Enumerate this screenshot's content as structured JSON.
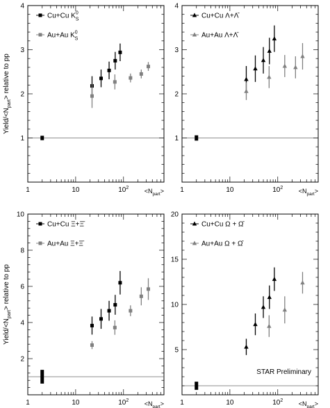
{
  "figure": {
    "ylabel_html": "Yield/&lt;N<tspan font-size=\"7\" baseline-shift=\"sub\">part</tspan>&gt; relative to pp",
    "xlabel_parts": [
      "<N",
      "part",
      ">"
    ],
    "annotation": "STAR Preliminary"
  },
  "chart_data": [
    {
      "type": "scatter",
      "panel": "top-left",
      "xlog": true,
      "xlim": [
        1,
        700
      ],
      "ylim": [
        0,
        4
      ],
      "yticks": [
        1,
        2,
        3,
        4
      ],
      "xticks": [
        1,
        10,
        100
      ],
      "xtick_labels": [
        "1",
        "10",
        "10²"
      ],
      "legend": [
        {
          "series": 0,
          "text": "Cu+Cu K",
          "sup": "0",
          "sub": "S"
        },
        {
          "series": 1,
          "text": "Au+Au K",
          "sup": "0",
          "sub": "S"
        }
      ],
      "series": [
        {
          "name": "Cu+Cu K0S",
          "color": "#000000",
          "marker": "square",
          "x": [
            22,
            34,
            50,
            67,
            85
          ],
          "y": [
            2.18,
            2.35,
            2.53,
            2.75,
            2.94
          ],
          "err": [
            0.22,
            0.2,
            0.2,
            0.2,
            0.2
          ]
        },
        {
          "name": "Au+Au K0S",
          "color": "#808080",
          "marker": "square",
          "x": [
            22,
            66,
            140,
            235,
            330
          ],
          "y": [
            1.95,
            2.27,
            2.36,
            2.45,
            2.62
          ],
          "err": [
            0.27,
            0.17,
            0.1,
            0.1,
            0.1
          ]
        }
      ],
      "ref_line": 1.0,
      "syst_box": {
        "x": 2,
        "ylo": 0.95,
        "yhi": 1.05
      }
    },
    {
      "type": "scatter",
      "panel": "top-right",
      "xlog": true,
      "xlim": [
        1,
        700
      ],
      "ylim": [
        0,
        4
      ],
      "yticks": [
        1,
        2,
        3,
        4
      ],
      "xticks": [
        1,
        10,
        100
      ],
      "xtick_labels": [
        "1",
        "10",
        "10²"
      ],
      "legend": [
        {
          "series": 0,
          "text": "Cu+Cu Λ+Λ̄"
        },
        {
          "series": 1,
          "text": "Au+Au Λ+Λ̄"
        }
      ],
      "series": [
        {
          "name": "Cu+Cu Λ+Λbar",
          "color": "#000000",
          "marker": "triangle",
          "x": [
            22,
            34,
            50,
            67,
            85
          ],
          "y": [
            2.33,
            2.57,
            2.76,
            2.97,
            3.25
          ],
          "err": [
            0.3,
            0.3,
            0.3,
            0.3,
            0.3
          ]
        },
        {
          "name": "Au+Au Λ+Λbar",
          "color": "#808080",
          "marker": "triangle",
          "x": [
            22,
            66,
            140,
            235,
            330
          ],
          "y": [
            2.06,
            2.38,
            2.63,
            2.6,
            2.85
          ],
          "err": [
            0.2,
            0.25,
            0.25,
            0.25,
            0.3
          ]
        }
      ],
      "ref_line": 1.0,
      "syst_box": {
        "x": 2,
        "ylo": 0.94,
        "yhi": 1.06
      }
    },
    {
      "type": "scatter",
      "panel": "bottom-left",
      "xlog": true,
      "xlim": [
        1,
        700
      ],
      "ylim": [
        0,
        10
      ],
      "yticks": [
        2,
        4,
        6,
        8,
        10
      ],
      "xticks": [
        1,
        10,
        100
      ],
      "xtick_labels": [
        "1",
        "10",
        "10²"
      ],
      "legend": [
        {
          "series": 0,
          "text": "Cu+Cu Ξ+Ξ̄"
        },
        {
          "series": 1,
          "text": "Au+Au Ξ+Ξ̄"
        }
      ],
      "series": [
        {
          "name": "Cu+Cu Ξ+Ξbar",
          "color": "#000000",
          "marker": "square",
          "x": [
            22,
            34,
            50,
            67,
            85
          ],
          "y": [
            3.83,
            4.2,
            4.65,
            4.98,
            6.2
          ],
          "err": [
            0.5,
            0.55,
            0.55,
            0.55,
            0.65
          ]
        },
        {
          "name": "Au+Au Ξ+Ξbar",
          "color": "#808080",
          "marker": "square",
          "x": [
            22,
            66,
            140,
            235,
            330
          ],
          "y": [
            2.75,
            3.72,
            4.65,
            5.45,
            5.85
          ],
          "err": [
            0.22,
            0.4,
            0.3,
            0.5,
            0.6
          ]
        }
      ],
      "ref_line": 1.0,
      "syst_box": {
        "x": 2,
        "ylo": 0.62,
        "yhi": 1.38
      }
    },
    {
      "type": "scatter",
      "panel": "bottom-right",
      "xlog": true,
      "xlim": [
        1,
        700
      ],
      "ylim": [
        0,
        20
      ],
      "yticks": [
        5,
        10,
        15,
        20
      ],
      "xticks": [
        1,
        10,
        100
      ],
      "xtick_labels": [
        "1",
        "10",
        "10²"
      ],
      "legend": [
        {
          "series": 0,
          "text": "Cu+Cu Ω + Ω̄"
        },
        {
          "series": 1,
          "text": "Au+Au Ω + Ω̄"
        }
      ],
      "series": [
        {
          "name": "Cu+Cu Ω+Ωbar",
          "color": "#000000",
          "marker": "triangle",
          "x": [
            22,
            34,
            50,
            67,
            85
          ],
          "y": [
            5.3,
            7.8,
            9.7,
            10.8,
            12.8
          ],
          "err": [
            0.9,
            1.2,
            1.2,
            1.3,
            1.3
          ]
        },
        {
          "name": "Au+Au Ω+Ωbar",
          "color": "#808080",
          "marker": "triangle",
          "x": [
            66,
            140,
            330
          ],
          "y": [
            7.6,
            9.4,
            12.4
          ],
          "err": [
            1.2,
            1.5,
            1.2
          ]
        }
      ],
      "ref_line": 1.0,
      "syst_box": {
        "x": 2,
        "ylo": 0.55,
        "yhi": 1.45
      },
      "annotation": true
    }
  ]
}
